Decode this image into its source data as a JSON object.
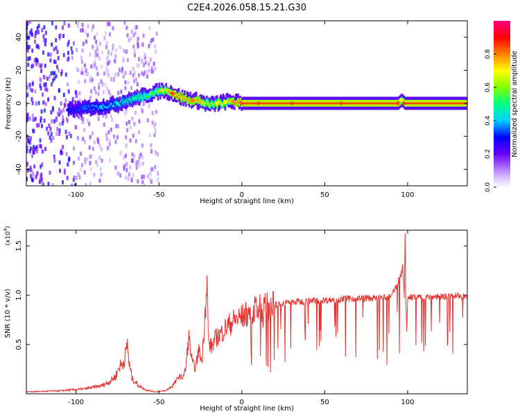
{
  "title": "C2E4.2026.058.15.21.G30",
  "colors": {
    "line": "#e8302c",
    "frame": "#000000"
  },
  "chart_data": [
    {
      "type": "heatmap",
      "xlabel": "Height of straight line (km)",
      "ylabel": "Frequency (Hz)",
      "xlim": [
        -130,
        136
      ],
      "ylim": [
        -50,
        50
      ],
      "xticks": [
        -100,
        -50,
        0,
        50,
        100
      ],
      "yticks": [
        -40,
        -20,
        0,
        20,
        40
      ],
      "xtick_labels": [
        "-100",
        "-50",
        "0",
        "50",
        "100"
      ],
      "ytick_labels": [
        "-40",
        "-20",
        "0",
        "20",
        "40"
      ],
      "colorbar": {
        "label": "Normalized spectral amplitude",
        "range": [
          0,
          1
        ],
        "ticks": [
          0.0,
          0.2,
          0.4,
          0.6,
          0.8
        ],
        "tick_labels": [
          "0.0",
          "0.2",
          "0.4",
          "0.6",
          "0.8"
        ]
      },
      "ridge": {
        "x": [
          -105,
          -95,
          -85,
          -75,
          -65,
          -55,
          -48,
          -42,
          -36,
          -30,
          -25,
          -20,
          -15,
          -10,
          -5,
          0,
          10,
          30,
          60,
          94,
          96,
          98,
          136
        ],
        "y": [
          -4,
          -3,
          -2,
          0,
          3,
          6,
          8,
          6,
          3,
          2,
          1,
          -1,
          0,
          1,
          1,
          0,
          0,
          0,
          0,
          0,
          2,
          0,
          0
        ],
        "amplitude": [
          0.3,
          0.35,
          0.4,
          0.45,
          0.5,
          0.55,
          0.65,
          0.85,
          0.75,
          0.8,
          0.75,
          0.6,
          0.7,
          0.7,
          0.8,
          0.85,
          0.85,
          0.85,
          0.85,
          0.85,
          0.7,
          0.85,
          0.85
        ]
      },
      "scatter_region_x": [
        -130,
        -50
      ]
    },
    {
      "type": "line",
      "xlabel": "Height of straight line (km)",
      "ylabel": "SNR (10 * v/v)",
      "y_scale_label": "(x10",
      "y_scale_exp": "4",
      "xlim": [
        -130,
        136
      ],
      "ylim": [
        0,
        16600
      ],
      "xticks": [
        -100,
        -50,
        0,
        50,
        100
      ],
      "yticks": [
        5000,
        10000,
        15000
      ],
      "xtick_labels": [
        "-100",
        "-50",
        "0",
        "50",
        "100"
      ],
      "ytick_labels": [
        "0.5",
        "1.0",
        "1.5"
      ],
      "series": [
        {
          "name": "SNR",
          "x": [
            -130,
            -110,
            -95,
            -85,
            -80,
            -76,
            -74,
            -72,
            -70,
            -69,
            -68,
            -66,
            -62,
            -58,
            -52,
            -46,
            -42,
            -40,
            -38,
            -36,
            -34,
            -32,
            -30,
            -28,
            -26,
            -24,
            -22,
            -21,
            -20,
            -18,
            -16,
            -12,
            -8,
            -4,
            0,
            5,
            10,
            20,
            30,
            40,
            50,
            60,
            70,
            80,
            90,
            96,
            97,
            98,
            98.5,
            99,
            99.5,
            100,
            102,
            110,
            120,
            130,
            136
          ],
          "y": [
            200,
            300,
            500,
            800,
            1200,
            1800,
            2800,
            3000,
            4000,
            5200,
            3000,
            1500,
            800,
            400,
            200,
            300,
            800,
            1200,
            1800,
            1600,
            2400,
            5800,
            3200,
            2600,
            4500,
            3200,
            9000,
            10900,
            5000,
            4800,
            5600,
            6200,
            7000,
            7500,
            7800,
            8300,
            8600,
            9000,
            9300,
            9400,
            9500,
            9600,
            9700,
            9700,
            9800,
            12000,
            13000,
            10000,
            16600,
            9000,
            6000,
            9800,
            9800,
            9800,
            9900,
            9900,
            9900
          ]
        }
      ]
    }
  ]
}
